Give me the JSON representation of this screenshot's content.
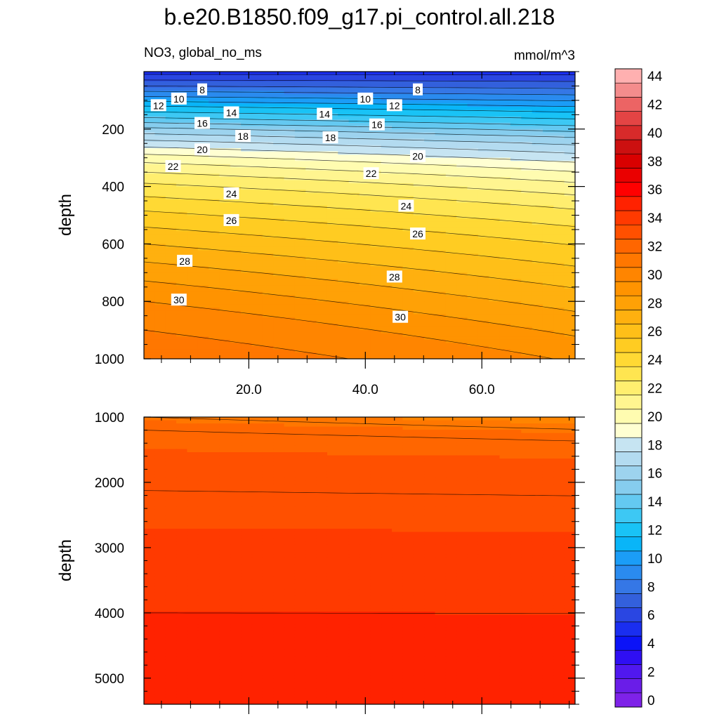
{
  "chart_data": {
    "title": "b.e20.B1850.f09_g17.pi_control.all.218",
    "variable_label": "NO3, global_no_ms",
    "units": "mmol/m^3",
    "type": "contour",
    "x": {
      "label": "",
      "range": [
        2,
        76
      ],
      "ticks": [
        20,
        40,
        60
      ],
      "tick_labels": [
        "20.0",
        "40.0",
        "60.0"
      ]
    },
    "colorbar": {
      "levels": [
        0,
        2,
        4,
        6,
        8,
        10,
        12,
        14,
        16,
        18,
        20,
        22,
        24,
        26,
        28,
        30,
        32,
        34,
        36,
        38,
        40,
        42,
        44
      ],
      "tick_labels": [
        "0",
        "2",
        "4",
        "6",
        "8",
        "10",
        "12",
        "14",
        "16",
        "18",
        "20",
        "22",
        "24",
        "26",
        "28",
        "30",
        "32",
        "34",
        "36",
        "38",
        "40",
        "42",
        "44"
      ],
      "colors": [
        "#7e22e8",
        "#6a1de8",
        "#5018ef",
        "#2f0ff3",
        "#0b13f7",
        "#1a2ef0",
        "#2a46e2",
        "#3360dc",
        "#3577e6",
        "#2a8bef",
        "#1b9df7",
        "#09b5f8",
        "#19c3f6",
        "#3dc8f4",
        "#64c9f1",
        "#86cdee",
        "#9dd3ee",
        "#b3dbf0",
        "#c6e4f2",
        "#ffffd2",
        "#fffcb0",
        "#fff590",
        "#ffee6f",
        "#ffe550",
        "#ffd934",
        "#ffcc22",
        "#ffbf18",
        "#ffb00f",
        "#ffa106",
        "#ff9300",
        "#ff8500",
        "#ff7700",
        "#ff6600",
        "#ff5000",
        "#ff3a00",
        "#ff2200",
        "#ff0000",
        "#ea0000",
        "#d90000",
        "#cc1010",
        "#d82a2a",
        "#e44444",
        "#ec6464",
        "#f48c8c",
        "#ffb0b0"
      ]
    },
    "panels": [
      {
        "id": "upper",
        "ylabel": "depth",
        "y_range": [
          0,
          1000
        ],
        "y_ticks": [
          200,
          400,
          600,
          800,
          1000
        ],
        "y_tick_labels": [
          "200",
          "400",
          "600",
          "800",
          "1000"
        ],
        "x_tick_labels_shown": true,
        "contour_labels": [
          {
            "text": "8",
            "x": 12,
            "y": 63
          },
          {
            "text": "8",
            "x": 49,
            "y": 63
          },
          {
            "text": "10",
            "x": 8,
            "y": 95
          },
          {
            "text": "10",
            "x": 40,
            "y": 95
          },
          {
            "text": "12",
            "x": 4.5,
            "y": 118
          },
          {
            "text": "12",
            "x": 45,
            "y": 118
          },
          {
            "text": "14",
            "x": 17,
            "y": 143
          },
          {
            "text": "14",
            "x": 33,
            "y": 148
          },
          {
            "text": "16",
            "x": 12,
            "y": 180
          },
          {
            "text": "16",
            "x": 42,
            "y": 185
          },
          {
            "text": "18",
            "x": 19,
            "y": 225
          },
          {
            "text": "18",
            "x": 34,
            "y": 230
          },
          {
            "text": "20",
            "x": 12,
            "y": 272
          },
          {
            "text": "20",
            "x": 49,
            "y": 295
          },
          {
            "text": "22",
            "x": 7,
            "y": 330
          },
          {
            "text": "22",
            "x": 41,
            "y": 355
          },
          {
            "text": "24",
            "x": 17,
            "y": 425
          },
          {
            "text": "24",
            "x": 47,
            "y": 468
          },
          {
            "text": "26",
            "x": 17,
            "y": 518
          },
          {
            "text": "26",
            "x": 49,
            "y": 565
          },
          {
            "text": "28",
            "x": 9,
            "y": 660
          },
          {
            "text": "28",
            "x": 45,
            "y": 715
          },
          {
            "text": "30",
            "x": 8,
            "y": 795
          },
          {
            "text": "30",
            "x": 46,
            "y": 855
          }
        ]
      },
      {
        "id": "lower",
        "ylabel": "depth",
        "y_range": [
          1000,
          5400
        ],
        "y_ticks": [
          1000,
          2000,
          3000,
          4000,
          5000
        ],
        "y_tick_labels": [
          "1000",
          "2000",
          "3000",
          "4000",
          "5000"
        ],
        "x_tick_labels_shown": false
      }
    ]
  }
}
